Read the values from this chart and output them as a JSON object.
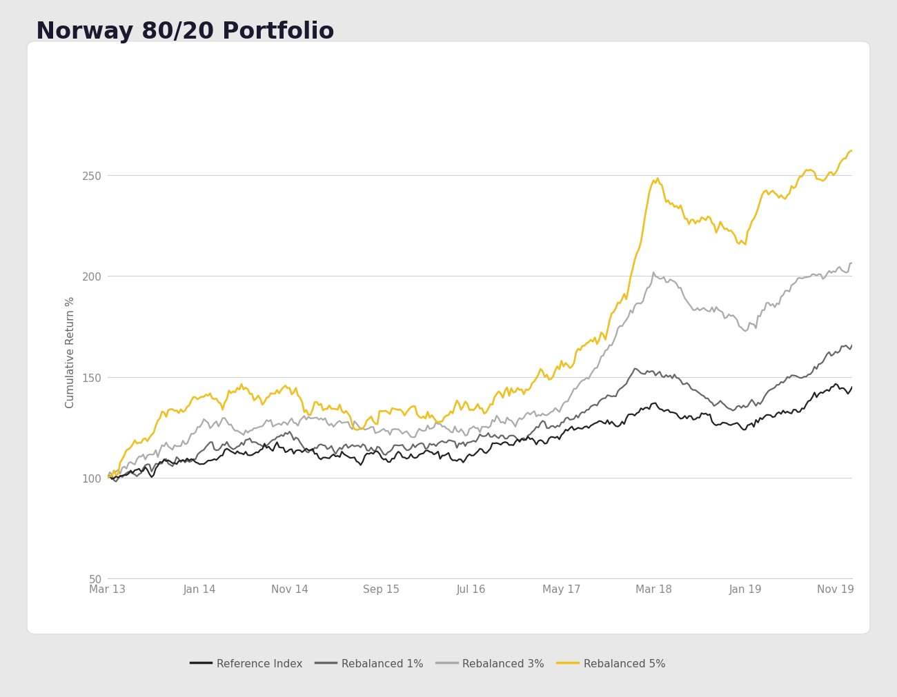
{
  "title": "Norway 80/20 Portfolio",
  "ylabel": "Cumulative Return %",
  "ylim": [
    50,
    275
  ],
  "yticks": [
    50,
    100,
    150,
    200,
    250
  ],
  "xtick_labels": [
    "Mar 13",
    "Jan 14",
    "Nov 14",
    "Sep 15",
    "Jul 16",
    "May 17",
    "Mar 18",
    "Jan 19",
    "Nov 19"
  ],
  "colors": {
    "reference_index": "#222222",
    "rebalanced_1": "#666666",
    "rebalanced_3": "#aaaaaa",
    "rebalanced_5": "#f0c020"
  },
  "legend_labels": [
    "Reference Index",
    "Rebalanced 1%",
    "Rebalanced 3%",
    "Rebalanced 5%"
  ],
  "title_color": "#1a1a2e",
  "title_fontsize": 24,
  "label_fontsize": 11,
  "tick_fontsize": 11,
  "grid_color": "#cccccc",
  "chart_bg": "#f8f8f8"
}
